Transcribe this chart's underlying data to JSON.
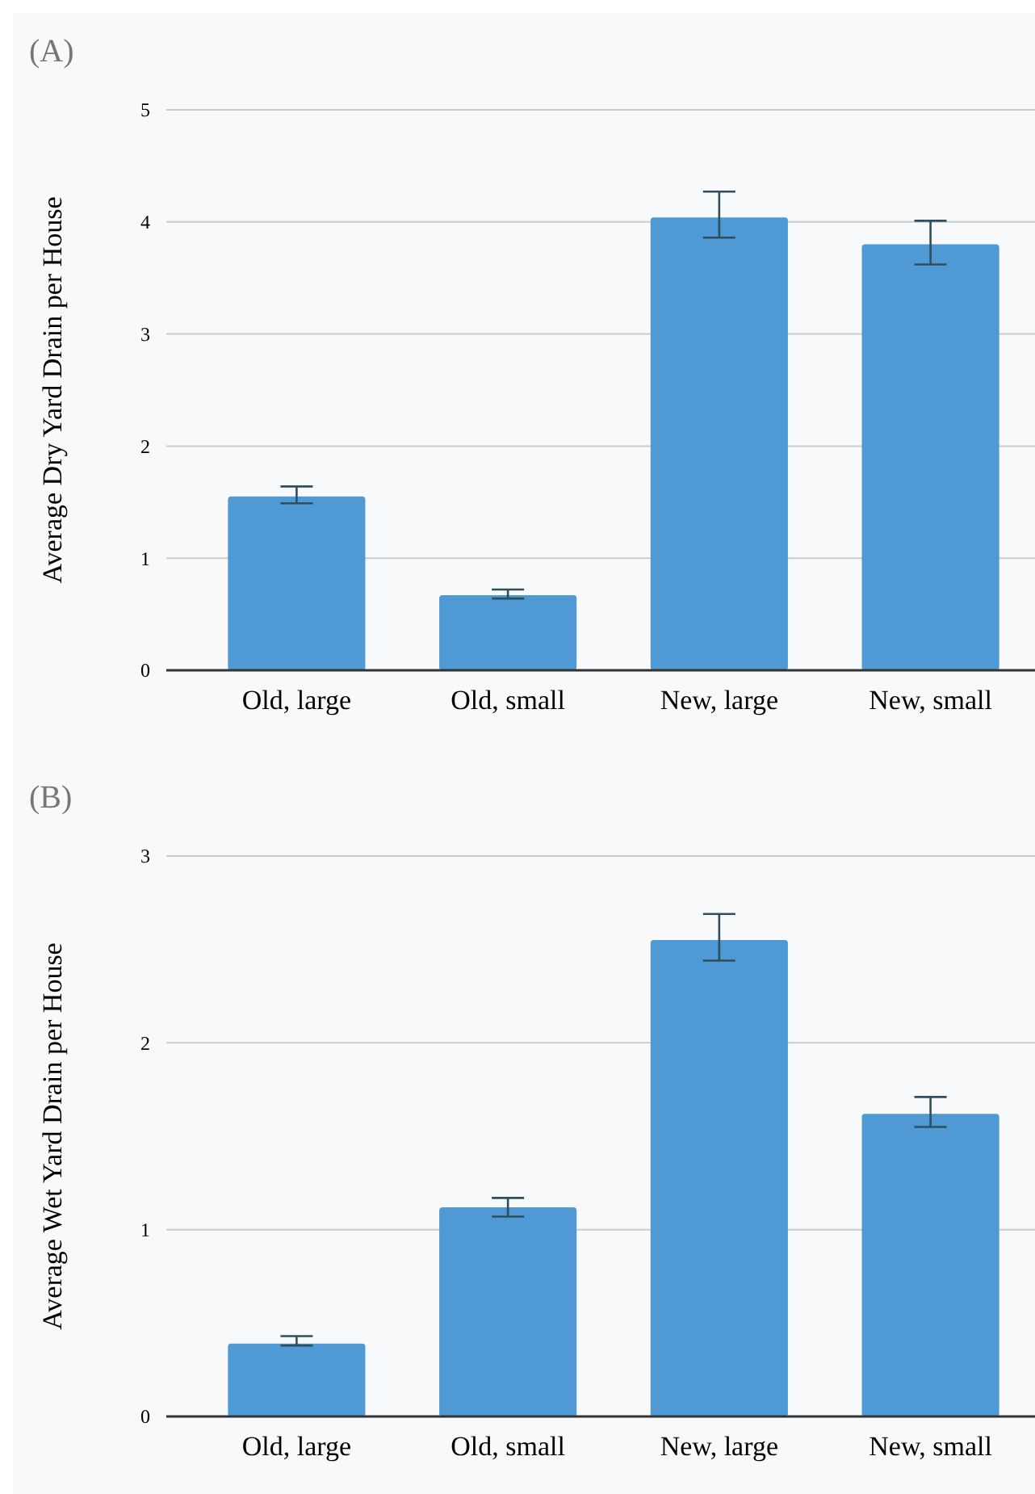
{
  "chart_data": [
    {
      "type": "bar",
      "title": "(A)",
      "ylabel": "Average Dry Yard Drain per House",
      "categories": [
        "Old, large",
        "Old, small",
        "New, large",
        "New, small"
      ],
      "values": [
        1.55,
        0.67,
        4.04,
        3.8
      ],
      "errors": [
        [
          1.49,
          1.64
        ],
        [
          0.64,
          0.72
        ],
        [
          3.86,
          4.27
        ],
        [
          3.62,
          4.01
        ]
      ],
      "color": "#4f9ad4",
      "ylim": [
        0,
        5
      ],
      "yticks": [
        0,
        1,
        2,
        3,
        4,
        5
      ],
      "grid": "y"
    },
    {
      "type": "bar",
      "title": "(B)",
      "ylabel": "Average Wet Yard Drain per House",
      "categories": [
        "Old, large",
        "Old, small",
        "New, large",
        "New, small"
      ],
      "values": [
        0.39,
        1.12,
        2.55,
        1.62
      ],
      "errors": [
        [
          0.38,
          0.43
        ],
        [
          1.07,
          1.17
        ],
        [
          2.44,
          2.69
        ],
        [
          1.55,
          1.71
        ]
      ],
      "color": "#4f9ad4",
      "ylim": [
        0,
        3
      ],
      "yticks": [
        0,
        1,
        2,
        3
      ],
      "grid": "y"
    }
  ]
}
